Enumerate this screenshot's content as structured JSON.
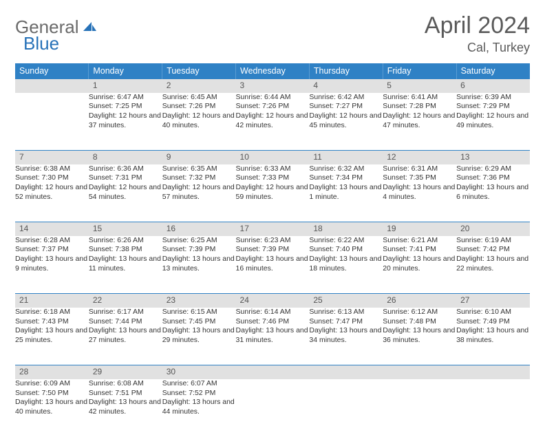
{
  "brand": {
    "part1": "General",
    "part2": "Blue"
  },
  "title": "April 2024",
  "location": "Cal, Turkey",
  "colors": {
    "header_bg": "#2f81c5",
    "header_text": "#ffffff",
    "daynum_bg": "#e1e1e1",
    "row_divider": "#2f81c5",
    "brand_gray": "#6a6a6a",
    "brand_blue": "#2772b8",
    "text": "#333333",
    "title_color": "#5a5a5a"
  },
  "weekdays": [
    "Sunday",
    "Monday",
    "Tuesday",
    "Wednesday",
    "Thursday",
    "Friday",
    "Saturday"
  ],
  "weeks": [
    [
      null,
      {
        "d": "1",
        "sr": "6:47 AM",
        "ss": "7:25 PM",
        "dl": "12 hours and 37 minutes."
      },
      {
        "d": "2",
        "sr": "6:45 AM",
        "ss": "7:26 PM",
        "dl": "12 hours and 40 minutes."
      },
      {
        "d": "3",
        "sr": "6:44 AM",
        "ss": "7:26 PM",
        "dl": "12 hours and 42 minutes."
      },
      {
        "d": "4",
        "sr": "6:42 AM",
        "ss": "7:27 PM",
        "dl": "12 hours and 45 minutes."
      },
      {
        "d": "5",
        "sr": "6:41 AM",
        "ss": "7:28 PM",
        "dl": "12 hours and 47 minutes."
      },
      {
        "d": "6",
        "sr": "6:39 AM",
        "ss": "7:29 PM",
        "dl": "12 hours and 49 minutes."
      }
    ],
    [
      {
        "d": "7",
        "sr": "6:38 AM",
        "ss": "7:30 PM",
        "dl": "12 hours and 52 minutes."
      },
      {
        "d": "8",
        "sr": "6:36 AM",
        "ss": "7:31 PM",
        "dl": "12 hours and 54 minutes."
      },
      {
        "d": "9",
        "sr": "6:35 AM",
        "ss": "7:32 PM",
        "dl": "12 hours and 57 minutes."
      },
      {
        "d": "10",
        "sr": "6:33 AM",
        "ss": "7:33 PM",
        "dl": "12 hours and 59 minutes."
      },
      {
        "d": "11",
        "sr": "6:32 AM",
        "ss": "7:34 PM",
        "dl": "13 hours and 1 minute."
      },
      {
        "d": "12",
        "sr": "6:31 AM",
        "ss": "7:35 PM",
        "dl": "13 hours and 4 minutes."
      },
      {
        "d": "13",
        "sr": "6:29 AM",
        "ss": "7:36 PM",
        "dl": "13 hours and 6 minutes."
      }
    ],
    [
      {
        "d": "14",
        "sr": "6:28 AM",
        "ss": "7:37 PM",
        "dl": "13 hours and 9 minutes."
      },
      {
        "d": "15",
        "sr": "6:26 AM",
        "ss": "7:38 PM",
        "dl": "13 hours and 11 minutes."
      },
      {
        "d": "16",
        "sr": "6:25 AM",
        "ss": "7:39 PM",
        "dl": "13 hours and 13 minutes."
      },
      {
        "d": "17",
        "sr": "6:23 AM",
        "ss": "7:39 PM",
        "dl": "13 hours and 16 minutes."
      },
      {
        "d": "18",
        "sr": "6:22 AM",
        "ss": "7:40 PM",
        "dl": "13 hours and 18 minutes."
      },
      {
        "d": "19",
        "sr": "6:21 AM",
        "ss": "7:41 PM",
        "dl": "13 hours and 20 minutes."
      },
      {
        "d": "20",
        "sr": "6:19 AM",
        "ss": "7:42 PM",
        "dl": "13 hours and 22 minutes."
      }
    ],
    [
      {
        "d": "21",
        "sr": "6:18 AM",
        "ss": "7:43 PM",
        "dl": "13 hours and 25 minutes."
      },
      {
        "d": "22",
        "sr": "6:17 AM",
        "ss": "7:44 PM",
        "dl": "13 hours and 27 minutes."
      },
      {
        "d": "23",
        "sr": "6:15 AM",
        "ss": "7:45 PM",
        "dl": "13 hours and 29 minutes."
      },
      {
        "d": "24",
        "sr": "6:14 AM",
        "ss": "7:46 PM",
        "dl": "13 hours and 31 minutes."
      },
      {
        "d": "25",
        "sr": "6:13 AM",
        "ss": "7:47 PM",
        "dl": "13 hours and 34 minutes."
      },
      {
        "d": "26",
        "sr": "6:12 AM",
        "ss": "7:48 PM",
        "dl": "13 hours and 36 minutes."
      },
      {
        "d": "27",
        "sr": "6:10 AM",
        "ss": "7:49 PM",
        "dl": "13 hours and 38 minutes."
      }
    ],
    [
      {
        "d": "28",
        "sr": "6:09 AM",
        "ss": "7:50 PM",
        "dl": "13 hours and 40 minutes."
      },
      {
        "d": "29",
        "sr": "6:08 AM",
        "ss": "7:51 PM",
        "dl": "13 hours and 42 minutes."
      },
      {
        "d": "30",
        "sr": "6:07 AM",
        "ss": "7:52 PM",
        "dl": "13 hours and 44 minutes."
      },
      null,
      null,
      null,
      null
    ]
  ],
  "labels": {
    "sunrise": "Sunrise:",
    "sunset": "Sunset:",
    "daylight": "Daylight:"
  }
}
